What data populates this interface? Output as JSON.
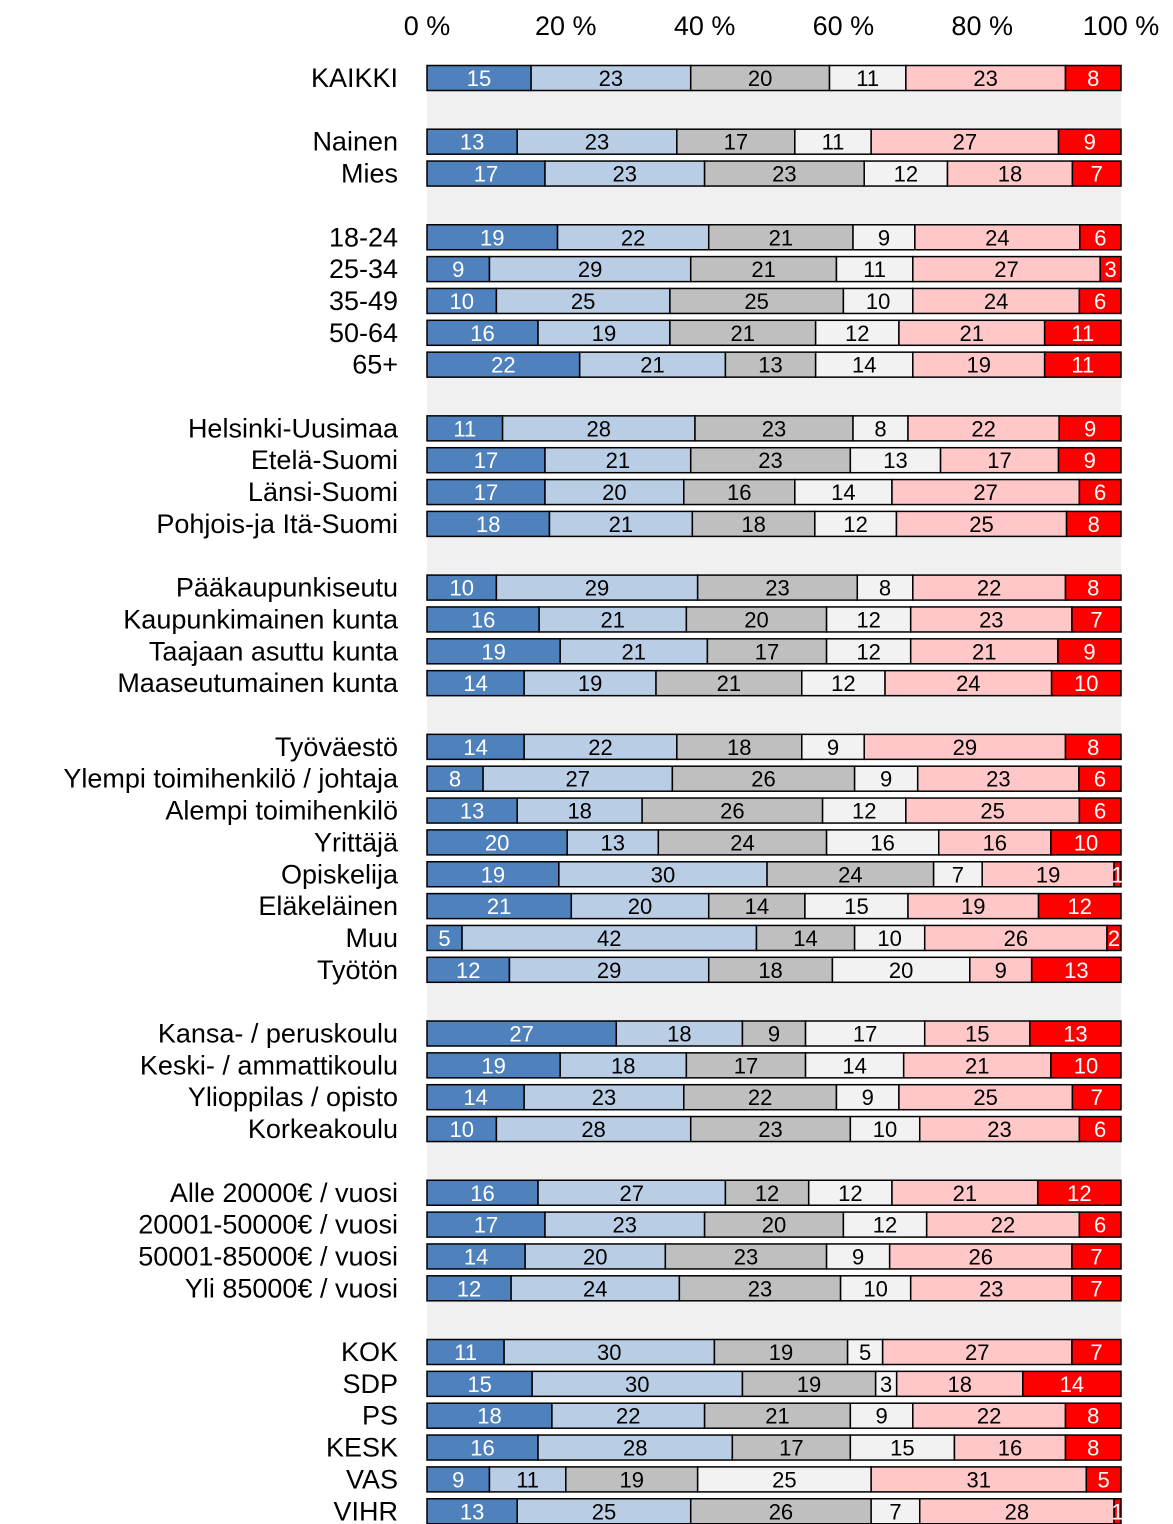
{
  "chart_data": {
    "type": "bar",
    "orientation": "horizontal",
    "stacked": "percent",
    "x_ticks": [
      "0 %",
      "20 %",
      "40 %",
      "60 %",
      "80 %",
      "100 %"
    ],
    "xlim": [
      0,
      100
    ],
    "tick_position": "top",
    "legend": "none",
    "segment_colors": [
      "#4f81bd",
      "#b9cde5",
      "#bfbfbf",
      "#f2f2f2",
      "#ffc7c7",
      "#ff0000"
    ],
    "segment_text_colors": [
      "#ffffff",
      "#000000",
      "#000000",
      "#000000",
      "#000000",
      "#ffffff"
    ],
    "band_color": "#f0f0f0",
    "groups": [
      {
        "rows": [
          {
            "label": "KAIKKI",
            "values": [
              15,
              23,
              20,
              11,
              23,
              8
            ]
          }
        ]
      },
      {
        "rows": [
          {
            "label": "Nainen",
            "values": [
              13,
              23,
              17,
              11,
              27,
              9
            ]
          },
          {
            "label": "Mies",
            "values": [
              17,
              23,
              23,
              12,
              18,
              7
            ]
          }
        ]
      },
      {
        "rows": [
          {
            "label": "18-24",
            "values": [
              19,
              22,
              21,
              9,
              24,
              6
            ]
          },
          {
            "label": "25-34",
            "values": [
              9,
              29,
              21,
              11,
              27,
              3
            ]
          },
          {
            "label": "35-49",
            "values": [
              10,
              25,
              25,
              10,
              24,
              6
            ]
          },
          {
            "label": "50-64",
            "values": [
              16,
              19,
              21,
              12,
              21,
              11
            ]
          },
          {
            "label": "65+",
            "values": [
              22,
              21,
              13,
              14,
              19,
              11
            ]
          }
        ]
      },
      {
        "rows": [
          {
            "label": "Helsinki-Uusimaa",
            "values": [
              11,
              28,
              23,
              8,
              22,
              9
            ]
          },
          {
            "label": "Etelä-Suomi",
            "values": [
              17,
              21,
              23,
              13,
              17,
              9
            ]
          },
          {
            "label": "Länsi-Suomi",
            "values": [
              17,
              20,
              16,
              14,
              27,
              6
            ]
          },
          {
            "label": "Pohjois-ja Itä-Suomi",
            "values": [
              18,
              21,
              18,
              12,
              25,
              8
            ]
          }
        ]
      },
      {
        "rows": [
          {
            "label": "Pääkaupunkiseutu",
            "values": [
              10,
              29,
              23,
              8,
              22,
              8
            ]
          },
          {
            "label": "Kaupunkimainen kunta",
            "values": [
              16,
              21,
              20,
              12,
              23,
              7
            ]
          },
          {
            "label": "Taajaan asuttu kunta",
            "values": [
              19,
              21,
              17,
              12,
              21,
              9
            ]
          },
          {
            "label": "Maaseutumainen kunta",
            "values": [
              14,
              19,
              21,
              12,
              24,
              10
            ]
          }
        ]
      },
      {
        "rows": [
          {
            "label": "Työväestö",
            "values": [
              14,
              22,
              18,
              9,
              29,
              8
            ]
          },
          {
            "label": "Ylempi toimihenkilö / johtaja",
            "values": [
              8,
              27,
              26,
              9,
              23,
              6
            ]
          },
          {
            "label": "Alempi toimihenkilö",
            "values": [
              13,
              18,
              26,
              12,
              25,
              6
            ]
          },
          {
            "label": "Yrittäjä",
            "values": [
              20,
              13,
              24,
              16,
              16,
              10
            ]
          },
          {
            "label": "Opiskelija",
            "values": [
              19,
              30,
              24,
              7,
              19,
              1
            ]
          },
          {
            "label": "Eläkeläinen",
            "values": [
              21,
              20,
              14,
              15,
              19,
              12
            ]
          },
          {
            "label": "Muu",
            "values": [
              5,
              42,
              14,
              10,
              26,
              2
            ]
          },
          {
            "label": "Työtön",
            "values": [
              12,
              29,
              18,
              20,
              9,
              13
            ]
          }
        ]
      },
      {
        "rows": [
          {
            "label": "Kansa- / peruskoulu",
            "values": [
              27,
              18,
              9,
              17,
              15,
              13
            ]
          },
          {
            "label": "Keski- / ammattikoulu",
            "values": [
              19,
              18,
              17,
              14,
              21,
              10
            ]
          },
          {
            "label": "Ylioppilas / opisto",
            "values": [
              14,
              23,
              22,
              9,
              25,
              7
            ]
          },
          {
            "label": "Korkeakoulu",
            "values": [
              10,
              28,
              23,
              10,
              23,
              6
            ]
          }
        ]
      },
      {
        "rows": [
          {
            "label": "Alle 20000€ / vuosi",
            "values": [
              16,
              27,
              12,
              12,
              21,
              12
            ]
          },
          {
            "label": "20001-50000€ / vuosi",
            "values": [
              17,
              23,
              20,
              12,
              22,
              6
            ]
          },
          {
            "label": "50001-85000€ / vuosi",
            "values": [
              14,
              20,
              23,
              9,
              26,
              7
            ]
          },
          {
            "label": "Yli 85000€ / vuosi",
            "values": [
              12,
              24,
              23,
              10,
              23,
              7
            ]
          }
        ]
      },
      {
        "rows": [
          {
            "label": "KOK",
            "values": [
              11,
              30,
              19,
              5,
              27,
              7
            ]
          },
          {
            "label": "SDP",
            "values": [
              15,
              30,
              19,
              3,
              18,
              14
            ]
          },
          {
            "label": "PS",
            "values": [
              18,
              22,
              21,
              9,
              22,
              8
            ]
          },
          {
            "label": "KESK",
            "values": [
              16,
              28,
              17,
              15,
              16,
              8
            ]
          },
          {
            "label": "VAS",
            "values": [
              9,
              11,
              19,
              25,
              31,
              5
            ]
          },
          {
            "label": "VIHR",
            "values": [
              13,
              25,
              26,
              7,
              28,
              1
            ]
          }
        ]
      }
    ]
  }
}
